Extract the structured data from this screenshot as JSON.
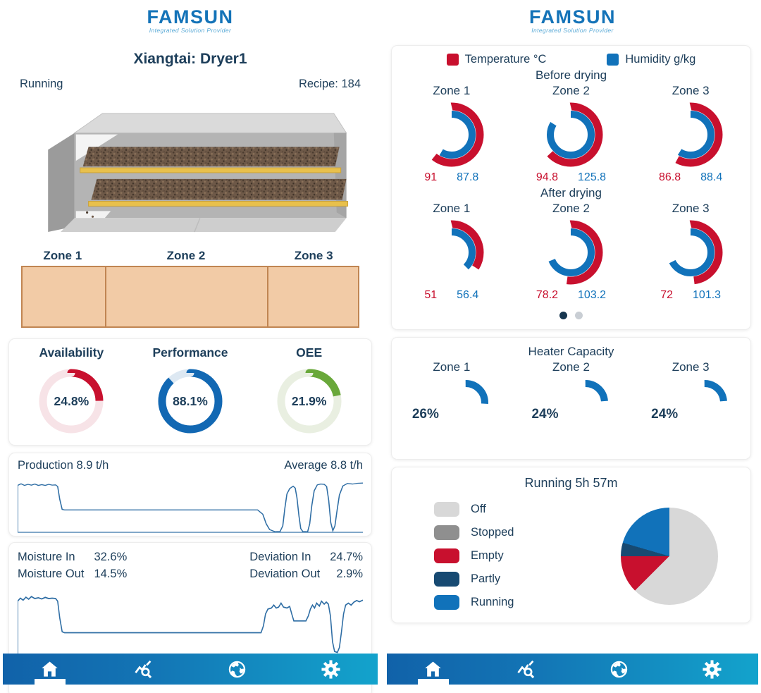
{
  "brand": {
    "logo": "FAMSUN",
    "tagline": "Integrated Solution Provider"
  },
  "colors": {
    "red": "#c8102e",
    "blue": "#1172ba",
    "green": "#69a83a",
    "navy": "#1d3e5a",
    "nav_gradient_start": "#1162a9",
    "nav_gradient_end": "#13a3cc",
    "zone_fill": "#f2cba6",
    "zone_border": "#c08552"
  },
  "nav": {
    "items": [
      {
        "icon": "home-icon",
        "active": true
      },
      {
        "icon": "trends-search-icon",
        "active": false
      },
      {
        "icon": "globe-icon",
        "active": false
      },
      {
        "icon": "settings-gear-icon",
        "active": false
      }
    ]
  },
  "left": {
    "title": "Xiangtai: Dryer1",
    "status": "Running",
    "recipe": "Recipe: 184",
    "zone_labels": [
      "Zone 1",
      "Zone 2",
      "Zone 3"
    ],
    "oee_card": {
      "metrics": [
        {
          "label": "Availability",
          "value": 24.8,
          "display": "24.8%",
          "color": "#c8102e",
          "track": "#f7e3e7"
        },
        {
          "label": "Performance",
          "value": 88.1,
          "display": "88.1%",
          "color": "#1268b3",
          "track": "#dde8f2"
        },
        {
          "label": "OEE",
          "value": 21.9,
          "display": "21.9%",
          "color": "#69a83a",
          "track": "#e9efe1"
        }
      ]
    },
    "production": {
      "label": "Production 8.9 t/h",
      "average": "Average 8.8 t/h"
    },
    "moisture": {
      "in_label": "Moisture In",
      "in_value": "32.6%",
      "out_label": "Moisture Out",
      "out_value": "14.5%",
      "dev_in_label": "Deviation In",
      "dev_in_value": "24.7%",
      "dev_out_label": "Deviation Out",
      "dev_out_value": "2.9%"
    }
  },
  "right": {
    "legend": [
      {
        "label": "Temperature °C",
        "color": "#c8102e"
      },
      {
        "label": "Humidity g/kg",
        "color": "#1172ba"
      }
    ],
    "before": {
      "title": "Before drying",
      "zones": [
        {
          "label": "Zone 1",
          "temp": 91,
          "hum": 87.8,
          "temp_display": "91",
          "hum_display": "87.8"
        },
        {
          "label": "Zone 2",
          "temp": 94.8,
          "hum": 125.8,
          "temp_display": "94.8",
          "hum_display": "125.8"
        },
        {
          "label": "Zone 3",
          "temp": 86.8,
          "hum": 88.4,
          "temp_display": "86.8",
          "hum_display": "88.4"
        }
      ]
    },
    "after": {
      "title": "After drying",
      "zones": [
        {
          "label": "Zone 1",
          "temp": 51,
          "hum": 56.4,
          "temp_display": "51",
          "hum_display": "56.4"
        },
        {
          "label": "Zone 2",
          "temp": 78.2,
          "hum": 103.2,
          "temp_display": "78.2",
          "hum_display": "103.2"
        },
        {
          "label": "Zone 3",
          "temp": 72,
          "hum": 101.3,
          "temp_display": "72",
          "hum_display": "101.3"
        }
      ]
    },
    "pagination": {
      "active_color": "#17364f",
      "inactive_color": "#c9ced4",
      "dots": [
        {
          "active": true
        },
        {
          "active": false
        }
      ]
    },
    "heater": {
      "title": "Heater Capacity",
      "zones": [
        {
          "label": "Zone 1",
          "value": 26,
          "display": "26%"
        },
        {
          "label": "Zone 2",
          "value": 24,
          "display": "24%"
        },
        {
          "label": "Zone 3",
          "value": 24,
          "display": "24%"
        }
      ]
    },
    "running": {
      "title": "Running 5h 57m",
      "slices": [
        {
          "label": "Off",
          "color": "#d8d8d8",
          "value": 62.5
        },
        {
          "label": "Stopped",
          "color": "#8f8f8f",
          "value": 0
        },
        {
          "label": "Empty",
          "color": "#c8102e",
          "value": 12.5
        },
        {
          "label": "Partly",
          "color": "#174a72",
          "value": 4.5
        },
        {
          "label": "Running",
          "color": "#1172ba",
          "value": 20.5
        }
      ]
    }
  },
  "charts": {
    "gauge_max": 150,
    "production_line": {
      "type": "line",
      "ymax": 10,
      "color": "#2e6da4",
      "points": [
        [
          0,
          0
        ],
        [
          0,
          8.8
        ],
        [
          1,
          9.1
        ],
        [
          2,
          8.8
        ],
        [
          3,
          9.0
        ],
        [
          4,
          8.85
        ],
        [
          5,
          9.05
        ],
        [
          6,
          8.8
        ],
        [
          7,
          8.95
        ],
        [
          8,
          8.8
        ],
        [
          9,
          9.0
        ],
        [
          10,
          8.85
        ],
        [
          11,
          8.9
        ],
        [
          11.6,
          8.6
        ],
        [
          12.2,
          6.2
        ],
        [
          12.9,
          4.3
        ],
        [
          13.6,
          4.2
        ],
        [
          69.5,
          4.2
        ],
        [
          71,
          3.4
        ],
        [
          72,
          1.6
        ],
        [
          73,
          0.5
        ],
        [
          74.5,
          0.12
        ],
        [
          76,
          0.15
        ],
        [
          76.8,
          1.2
        ],
        [
          77.4,
          4.5
        ],
        [
          78,
          7.2
        ],
        [
          78.8,
          8.2
        ],
        [
          79.8,
          8.65
        ],
        [
          80.4,
          8.3
        ],
        [
          80.9,
          6.5
        ],
        [
          81.5,
          3
        ],
        [
          82,
          0.7
        ],
        [
          82.6,
          0.15
        ],
        [
          84,
          0.12
        ],
        [
          84.6,
          1.6
        ],
        [
          85.2,
          5
        ],
        [
          85.9,
          7.8
        ],
        [
          86.8,
          8.9
        ],
        [
          87.8,
          9.05
        ],
        [
          88.8,
          9.0
        ],
        [
          89.5,
          8.6
        ],
        [
          90.1,
          6
        ],
        [
          90.7,
          1.8
        ],
        [
          91.3,
          0.3
        ],
        [
          91.9,
          1.2
        ],
        [
          92.5,
          4
        ],
        [
          93.2,
          7
        ],
        [
          94.2,
          8.7
        ],
        [
          95.5,
          9.15
        ],
        [
          97,
          9.05
        ],
        [
          98.5,
          9.2
        ],
        [
          100,
          9.25
        ]
      ]
    },
    "moisture_line": {
      "type": "line",
      "ymax": 36,
      "color": "#2e6da4",
      "points": [
        [
          0,
          0
        ],
        [
          0,
          30.5
        ],
        [
          0.8,
          32
        ],
        [
          1.6,
          31
        ],
        [
          2.4,
          32.5
        ],
        [
          3.2,
          31.5
        ],
        [
          4,
          32.8
        ],
        [
          5,
          31.8
        ],
        [
          6,
          32.2
        ],
        [
          7,
          31.6
        ],
        [
          8,
          32.4
        ],
        [
          9,
          31.8
        ],
        [
          10,
          32
        ],
        [
          11,
          31.8
        ],
        [
          11.6,
          30.5
        ],
        [
          12.2,
          22
        ],
        [
          12.9,
          15
        ],
        [
          13.6,
          14.5
        ],
        [
          69.5,
          14.5
        ],
        [
          70.5,
          14.5
        ],
        [
          71.2,
          18
        ],
        [
          71.8,
          24
        ],
        [
          72.5,
          26.5
        ],
        [
          73.5,
          27
        ],
        [
          74.2,
          28.5
        ],
        [
          74.9,
          27
        ],
        [
          75.6,
          27.5
        ],
        [
          76.3,
          29.5
        ],
        [
          77,
          27.5
        ],
        [
          78,
          27
        ],
        [
          78.8,
          27.8
        ],
        [
          79.4,
          24
        ],
        [
          80,
          20.5
        ],
        [
          83.5,
          20.5
        ],
        [
          84.2,
          23
        ],
        [
          84.8,
          26.5
        ],
        [
          85.4,
          28.5
        ],
        [
          86,
          27
        ],
        [
          86.6,
          29.5
        ],
        [
          87.4,
          28
        ],
        [
          88,
          30.5
        ],
        [
          88.8,
          29
        ],
        [
          89.4,
          30
        ],
        [
          90,
          29
        ],
        [
          90.6,
          23
        ],
        [
          91.2,
          10
        ],
        [
          91.8,
          5
        ],
        [
          92.6,
          4.5
        ],
        [
          93.2,
          7
        ],
        [
          93.8,
          15
        ],
        [
          94.4,
          24
        ],
        [
          95,
          28.5
        ],
        [
          95.8,
          29.5
        ],
        [
          96.6,
          28.5
        ],
        [
          97.4,
          30
        ],
        [
          98.2,
          30.8
        ],
        [
          99,
          30.2
        ],
        [
          100,
          31
        ]
      ]
    }
  }
}
